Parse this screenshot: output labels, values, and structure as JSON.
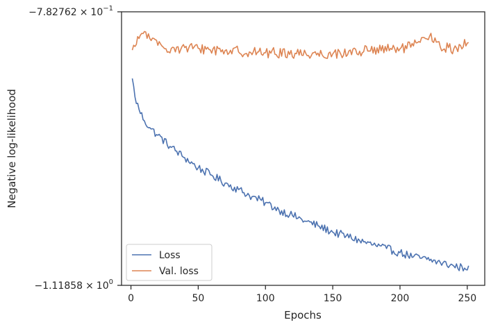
{
  "chart_data": {
    "type": "line",
    "xlabel": "Epochs",
    "ylabel": "Negative log-likelihood",
    "xlim": [
      -7,
      263
    ],
    "xticks": [
      0,
      50,
      100,
      150,
      200,
      250
    ],
    "ylim": [
      -1.11858,
      -0.782762
    ],
    "y_scale": "symlog",
    "ytick_values": [
      -1.11858,
      -0.782762
    ],
    "ytick_labels": {
      "bottom": {
        "prefix": "−1.11858",
        "base": "10",
        "exp": "0"
      },
      "top": {
        "prefix": "−7.82762",
        "base": "10",
        "exp": "−1"
      }
    },
    "grid": false,
    "legend_position": "lower-left",
    "series": [
      {
        "name": "Loss",
        "color": "#4c72b0",
        "keypoints": [
          [
            1,
            -0.8646
          ],
          [
            3,
            -0.8874
          ],
          [
            6,
            -0.9026
          ],
          [
            10,
            -0.9167
          ],
          [
            15,
            -0.9267
          ],
          [
            20,
            -0.9343
          ],
          [
            30,
            -0.9492
          ],
          [
            40,
            -0.962
          ],
          [
            50,
            -0.9744
          ],
          [
            60,
            -0.9833
          ],
          [
            70,
            -0.9931
          ],
          [
            80,
            -1.001
          ],
          [
            90,
            -1.0097
          ],
          [
            100,
            -1.0171
          ],
          [
            110,
            -1.026
          ],
          [
            120,
            -1.0327
          ],
          [
            130,
            -1.04
          ],
          [
            140,
            -1.0461
          ],
          [
            150,
            -1.0533
          ],
          [
            160,
            -1.058
          ],
          [
            170,
            -1.0636
          ],
          [
            180,
            -1.0688
          ],
          [
            190,
            -1.0734
          ],
          [
            200,
            -1.0786
          ],
          [
            210,
            -1.0836
          ],
          [
            220,
            -1.0868
          ],
          [
            230,
            -1.0907
          ],
          [
            240,
            -1.0949
          ],
          [
            248,
            -1.0974
          ],
          [
            251,
            -1.0945
          ]
        ],
        "noise_amplitude": 0.005
      },
      {
        "name": "Val. loss",
        "color": "#dd8452",
        "keypoints": [
          [
            1,
            -0.8298
          ],
          [
            4,
            -0.8229
          ],
          [
            7,
            -0.8114
          ],
          [
            10,
            -0.807
          ],
          [
            14,
            -0.8155
          ],
          [
            20,
            -0.8239
          ],
          [
            30,
            -0.8276
          ],
          [
            50,
            -0.8276
          ],
          [
            70,
            -0.8303
          ],
          [
            100,
            -0.8331
          ],
          [
            130,
            -0.8339
          ],
          [
            150,
            -0.8345
          ],
          [
            170,
            -0.8311
          ],
          [
            200,
            -0.8282
          ],
          [
            210,
            -0.8247
          ],
          [
            222,
            -0.8127
          ],
          [
            230,
            -0.8263
          ],
          [
            240,
            -0.8282
          ],
          [
            250,
            -0.8212
          ],
          [
            251,
            -0.8205
          ]
        ],
        "noise_amplitude": 0.0065
      }
    ]
  }
}
